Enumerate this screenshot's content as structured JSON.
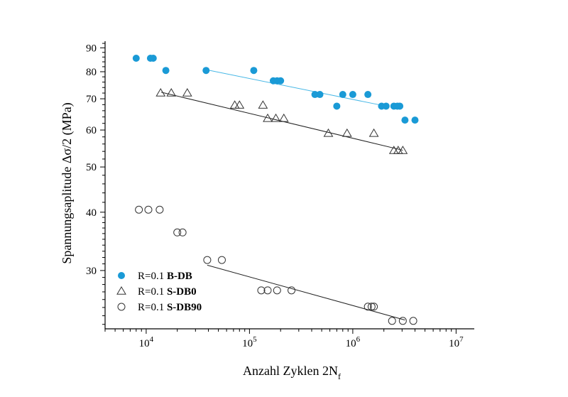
{
  "chart_data": {
    "type": "scatter",
    "title": "",
    "xlabel": "Anzahl Zyklen 2N",
    "xlabel_sub": "f",
    "ylabel": "Spannungsaplitude Δσ/2 (MPa)",
    "x_scale": "log",
    "y_scale": "log",
    "xlim": [
      4000,
      15000000
    ],
    "ylim": [
      22.5,
      93
    ],
    "x_ticks": [
      {
        "value": 10000,
        "mantissa": "10",
        "exponent": "4"
      },
      {
        "value": 100000,
        "mantissa": "10",
        "exponent": "5"
      },
      {
        "value": 1000000,
        "mantissa": "10",
        "exponent": "6"
      },
      {
        "value": 10000000,
        "mantissa": "10",
        "exponent": "7"
      }
    ],
    "y_ticks": [
      30,
      40,
      50,
      60,
      70,
      80,
      90
    ],
    "grid": false,
    "legend_position": "bottom-left",
    "series": [
      {
        "name": "R=0.1 B-DB",
        "label_prefix": "R=0.1",
        "label_bold": "B-DB",
        "marker": "filled-circle",
        "color": "#1a9ad6",
        "points": [
          [
            8000,
            85.5
          ],
          [
            11000,
            85.5
          ],
          [
            11700,
            85.5
          ],
          [
            15500,
            80.5
          ],
          [
            38000,
            80.5
          ],
          [
            110000,
            80.5
          ],
          [
            170000,
            76.5
          ],
          [
            185000,
            76.5
          ],
          [
            200000,
            76.5
          ],
          [
            430000,
            71.5
          ],
          [
            480000,
            71.5
          ],
          [
            800000,
            71.5
          ],
          [
            1000000,
            71.5
          ],
          [
            1400000,
            71.5
          ],
          [
            700000,
            67.5
          ],
          [
            1900000,
            67.5
          ],
          [
            2100000,
            67.5
          ],
          [
            2500000,
            67.5
          ],
          [
            2700000,
            67.5
          ],
          [
            2850000,
            67.5
          ],
          [
            3200000,
            63
          ],
          [
            4000000,
            63
          ]
        ],
        "fit": {
          "x": [
            38000,
            1900000
          ],
          "y": [
            80.8,
            67.8
          ]
        }
      },
      {
        "name": "R=0.1 S-DB0",
        "label_prefix": "R=0.1",
        "label_bold": "S-DB0",
        "marker": "open-triangle",
        "color": "#333333",
        "points": [
          [
            13800,
            72
          ],
          [
            17500,
            72
          ],
          [
            25000,
            72
          ],
          [
            72000,
            67.8
          ],
          [
            80000,
            67.8
          ],
          [
            135000,
            67.8
          ],
          [
            150000,
            63.5
          ],
          [
            180000,
            63.5
          ],
          [
            215000,
            63.5
          ],
          [
            580000,
            59
          ],
          [
            880000,
            59
          ],
          [
            1600000,
            59
          ],
          [
            2500000,
            54.2
          ],
          [
            2750000,
            54.2
          ],
          [
            3050000,
            54.2
          ]
        ],
        "fit": {
          "x": [
            14000,
            3050000
          ],
          "y": [
            72.3,
            54.3
          ]
        }
      },
      {
        "name": "R=0.1 S-DB90",
        "label_prefix": "R=0.1",
        "label_bold": "S-DB90",
        "marker": "open-circle",
        "color": "#333333",
        "points": [
          [
            8500,
            40.5
          ],
          [
            10500,
            40.5
          ],
          [
            13500,
            40.5
          ],
          [
            20000,
            36.2
          ],
          [
            22500,
            36.2
          ],
          [
            39000,
            31.6
          ],
          [
            54000,
            31.6
          ],
          [
            130000,
            27.2
          ],
          [
            150000,
            27.2
          ],
          [
            185000,
            27.2
          ],
          [
            255000,
            27.2
          ],
          [
            1400000,
            25.1
          ],
          [
            1520000,
            25.1
          ],
          [
            1600000,
            25.1
          ],
          [
            2400000,
            23.4
          ],
          [
            3050000,
            23.4
          ],
          [
            3850000,
            23.4
          ]
        ],
        "fit": {
          "x": [
            39000,
            3200000
          ],
          "y": [
            30.8,
            23.5
          ]
        }
      }
    ]
  }
}
